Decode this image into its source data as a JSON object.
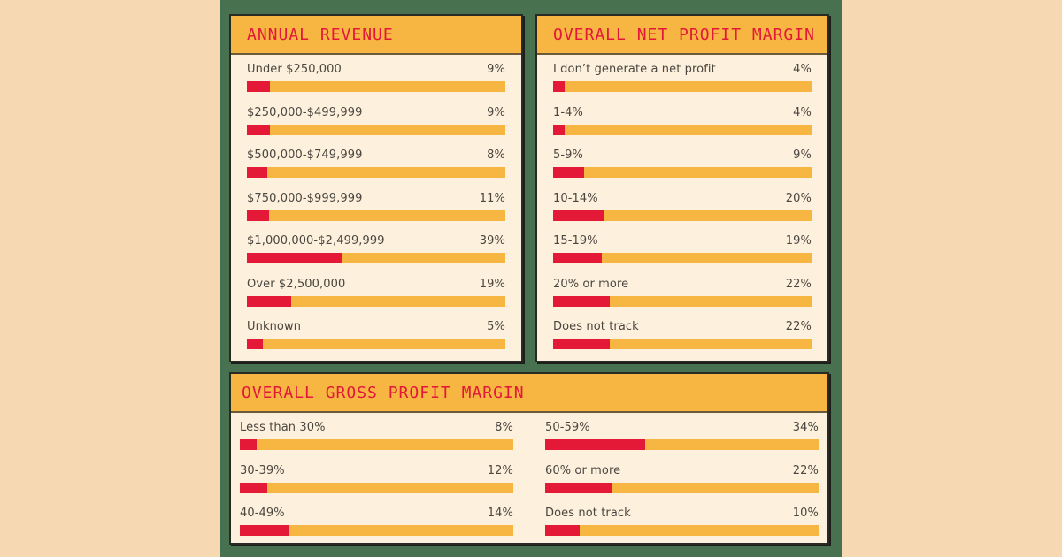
{
  "colors": {
    "background": "#f6d9b2",
    "band": "#48714f",
    "header": "#f7b542",
    "panel_body": "#fdf0dc",
    "title": "#e2173a",
    "bar_fill": "#e31937",
    "bar_track": "#f7b542"
  },
  "panels": {
    "annual_revenue": {
      "title": "ANNUAL REVENUE",
      "items": [
        {
          "label": "Under $250,000",
          "value": "9%",
          "pct": 9
        },
        {
          "label": "$250,000-$499,999",
          "value": "9%",
          "pct": 9
        },
        {
          "label": "$500,000-$749,999",
          "value": "8%",
          "pct": 8
        },
        {
          "label": "$750,000-$999,999",
          "value": "11%",
          "pct": 8.5
        },
        {
          "label": "$1,000,000-$2,499,999",
          "value": "39%",
          "pct": 37
        },
        {
          "label": "Over $2,500,000",
          "value": "19%",
          "pct": 17
        },
        {
          "label": "Unknown",
          "value": "5%",
          "pct": 6
        }
      ]
    },
    "net_profit": {
      "title": "OVERALL NET PROFIT MARGIN",
      "items": [
        {
          "label": "I don’t generate a net profit",
          "value": "4%",
          "pct": 4.3
        },
        {
          "label": "1-4%",
          "value": "4%",
          "pct": 4.3
        },
        {
          "label": "5-9%",
          "value": "9%",
          "pct": 12
        },
        {
          "label": "10-14%",
          "value": "20%",
          "pct": 20
        },
        {
          "label": "15-19%",
          "value": "19%",
          "pct": 19
        },
        {
          "label": "20% or more",
          "value": "22%",
          "pct": 22
        },
        {
          "label": "Does not track",
          "value": "22%",
          "pct": 22
        }
      ]
    },
    "gross_profit": {
      "title": "OVERALL GROSS PROFIT MARGIN",
      "left": [
        {
          "label": "Less than 30%",
          "value": "8%",
          "pct": 6
        },
        {
          "label": "30-39%",
          "value": "12%",
          "pct": 10
        },
        {
          "label": "40-49%",
          "value": "14%",
          "pct": 18
        }
      ],
      "right": [
        {
          "label": "50-59%",
          "value": "34%",
          "pct": 36.5
        },
        {
          "label": "60% or more",
          "value": "22%",
          "pct": 24.5
        },
        {
          "label": "Does not track",
          "value": "10%",
          "pct": 12.5
        }
      ]
    }
  },
  "chart_data": [
    {
      "type": "bar",
      "title": "ANNUAL REVENUE",
      "categories": [
        "Under $250,000",
        "$250,000-$499,999",
        "$500,000-$749,999",
        "$750,000-$999,999",
        "$1,000,000-$2,499,999",
        "Over $2,500,000",
        "Unknown"
      ],
      "values": [
        9,
        9,
        8,
        11,
        39,
        19,
        5
      ],
      "unit": "%",
      "orientation": "horizontal"
    },
    {
      "type": "bar",
      "title": "OVERALL NET PROFIT MARGIN",
      "categories": [
        "I don’t generate a net profit",
        "1-4%",
        "5-9%",
        "10-14%",
        "15-19%",
        "20% or more",
        "Does not track"
      ],
      "values": [
        4,
        4,
        9,
        20,
        19,
        22,
        22
      ],
      "unit": "%",
      "orientation": "horizontal"
    },
    {
      "type": "bar",
      "title": "OVERALL GROSS PROFIT MARGIN",
      "categories": [
        "Less than 30%",
        "30-39%",
        "40-49%",
        "50-59%",
        "60% or more",
        "Does not track"
      ],
      "values": [
        8,
        12,
        14,
        34,
        22,
        10
      ],
      "unit": "%",
      "orientation": "horizontal"
    }
  ]
}
